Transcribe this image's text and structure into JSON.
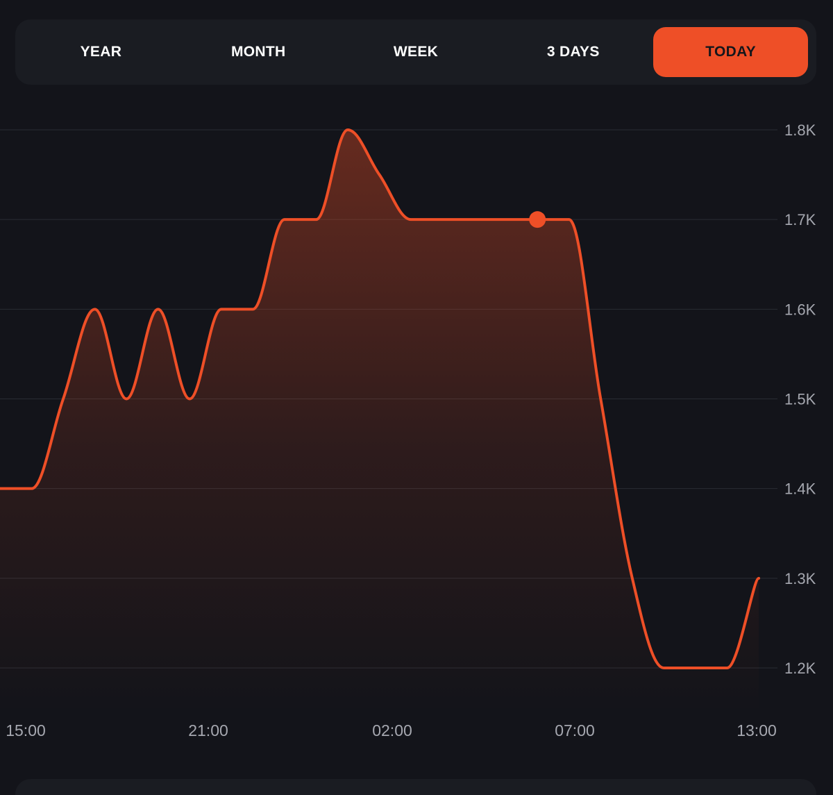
{
  "tabs": [
    {
      "label": "YEAR",
      "active": false
    },
    {
      "label": "MONTH",
      "active": false
    },
    {
      "label": "WEEK",
      "active": false
    },
    {
      "label": "3 DAYS",
      "active": false
    },
    {
      "label": "TODAY",
      "active": true
    }
  ],
  "colors": {
    "accent": "#ee4f27",
    "background": "#13141a",
    "panel": "#1a1c22",
    "grid": "#2a2c34",
    "tick_text": "#a6a8b0"
  },
  "chart_data": {
    "type": "area",
    "x_ticks": [
      "15:00",
      "21:00",
      "02:00",
      "07:00",
      "13:00"
    ],
    "y_ticks": [
      "1.2K",
      "1.3K",
      "1.4K",
      "1.5K",
      "1.6K",
      "1.7K",
      "1.8K"
    ],
    "ylim": [
      1200,
      1800
    ],
    "grid": true,
    "series": [
      {
        "x": [
          "13:00",
          "14:00",
          "15:00",
          "16:00",
          "17:00",
          "18:00",
          "19:00",
          "20:00",
          "21:00",
          "22:00",
          "23:00",
          "00:00",
          "01:00",
          "02:00",
          "03:00",
          "04:00",
          "05:00",
          "06:00",
          "07:00",
          "08:00",
          "09:00",
          "10:00",
          "11:00",
          "12:00",
          "13:00"
        ],
        "values": [
          1400,
          1400,
          1500,
          1600,
          1500,
          1600,
          1500,
          1600,
          1600,
          1700,
          1700,
          1800,
          1750,
          1700,
          1700,
          1700,
          1700,
          1700,
          1700,
          1500,
          1300,
          1200,
          1200,
          1200,
          1300
        ]
      }
    ],
    "highlight": {
      "x": "06:00",
      "value": 1700
    }
  }
}
